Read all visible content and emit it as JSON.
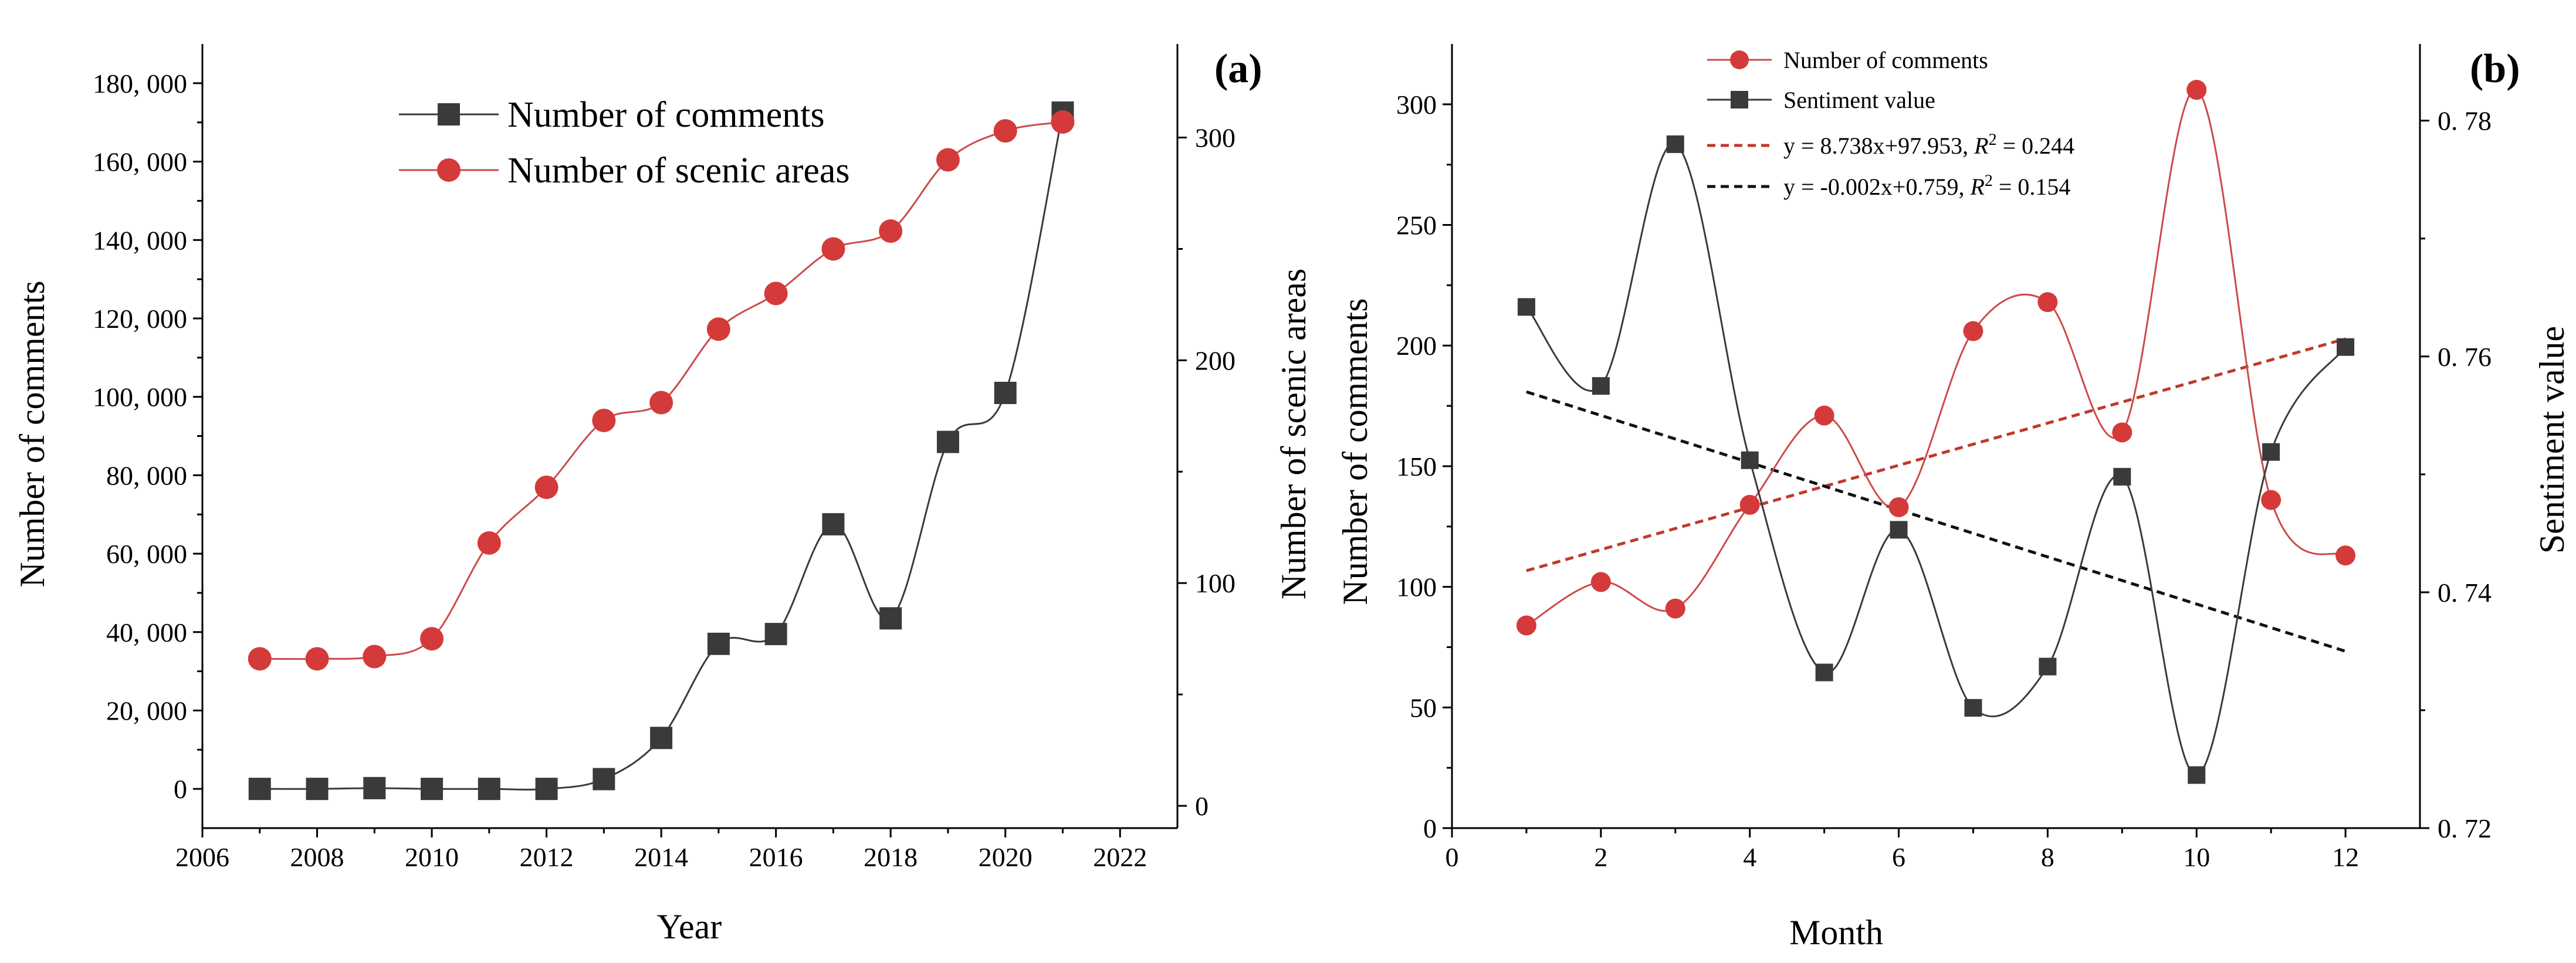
{
  "colors": {
    "black_series": "#3a3a3a",
    "red_series": "#d43a3a",
    "red_line": "#cc4a4a",
    "axis": "#000000"
  },
  "chart_data": [
    {
      "panel": "(a)",
      "type": "line",
      "xlabel": "Year",
      "ylabel": "Number of comments",
      "y2label": "Number of scenic areas",
      "xlim": [
        2006,
        2023
      ],
      "ylim": [
        -10000,
        190000
      ],
      "y2lim": [
        -10,
        342
      ],
      "x_ticks": [
        2006,
        2008,
        2010,
        2012,
        2014,
        2016,
        2018,
        2020,
        2022
      ],
      "x_tick_labels": [
        "2006",
        "2008",
        "2010",
        "2012",
        "2014",
        "2016",
        "2018",
        "2020",
        "2022"
      ],
      "y_ticks": [
        0,
        20000,
        40000,
        60000,
        80000,
        100000,
        120000,
        140000,
        160000,
        180000
      ],
      "y_tick_labels": [
        "0",
        "20, 000",
        "40, 000",
        "60, 000",
        "80, 000",
        "100, 000",
        "120, 000",
        "140, 000",
        "160, 000",
        "180, 000"
      ],
      "y2_ticks": [
        0,
        100,
        200,
        300
      ],
      "y2_tick_labels": [
        "0",
        "100",
        "200",
        "300"
      ],
      "legend": [
        "Number of comments",
        "Number of scenic areas"
      ],
      "x": [
        2007,
        2008,
        2009,
        2010,
        2011,
        2012,
        2013,
        2014,
        2015,
        2016,
        2017,
        2018,
        2019,
        2020,
        2021
      ],
      "series": [
        {
          "name": "Number of comments",
          "axis": "left",
          "marker": "square",
          "values": [
            0,
            0,
            200,
            0,
            0,
            0,
            2500,
            13000,
            37000,
            39500,
            67500,
            43500,
            88500,
            101000,
            172500
          ]
        },
        {
          "name": "Number of scenic areas",
          "axis": "right",
          "marker": "circle",
          "values": [
            66,
            66,
            67,
            75,
            118,
            143,
            173,
            181,
            214,
            230,
            250,
            258,
            290,
            303,
            307
          ]
        }
      ]
    },
    {
      "panel": "(b)",
      "type": "line",
      "xlabel": "Month",
      "ylabel": "Number of comments",
      "y2label": "Sentiment value",
      "xlim": [
        0,
        13
      ],
      "ylim": [
        0,
        325
      ],
      "y2lim": [
        0.72,
        0.7865
      ],
      "x_ticks": [
        0,
        2,
        4,
        6,
        8,
        10,
        12
      ],
      "x_tick_labels": [
        "0",
        "2",
        "4",
        "6",
        "8",
        "10",
        "12"
      ],
      "y_ticks": [
        0,
        50,
        100,
        150,
        200,
        250,
        300
      ],
      "y_tick_labels": [
        "0",
        "50",
        "100",
        "150",
        "200",
        "250",
        "300"
      ],
      "y2_ticks": [
        0.72,
        0.74,
        0.76,
        0.78
      ],
      "y2_tick_labels": [
        "0. 72",
        "0. 74",
        "0. 76",
        "0. 78"
      ],
      "legend": [
        "Number of comments",
        "Sentiment value",
        "y = 8.738x+97.953, R² = 0.244",
        "y = -0.002x+0.759, R² = 0.154"
      ],
      "legend_parts": [
        {
          "pre": "y = 8.738x+97.953, ",
          "r": "R",
          "sup": "2",
          "post": " = 0.244"
        },
        {
          "pre": "y = -0.002x+0.759, ",
          "r": "R",
          "sup": "2",
          "post": " = 0.154"
        }
      ],
      "x": [
        1,
        2,
        3,
        4,
        5,
        6,
        7,
        8,
        9,
        10,
        11,
        12
      ],
      "series": [
        {
          "name": "Number of comments",
          "axis": "left",
          "marker": "circle",
          "values": [
            84,
            102,
            91,
            134,
            171,
            133,
            206,
            218,
            164,
            306,
            136,
            113
          ]
        },
        {
          "name": "Sentiment value",
          "axis": "right",
          "marker": "square",
          "values": [
            0.7642,
            0.7575,
            0.778,
            0.7512,
            0.7332,
            0.7453,
            0.7302,
            0.7337,
            0.7498,
            0.7245,
            0.7519,
            0.7608
          ]
        }
      ],
      "trendlines": [
        {
          "name": "y = 8.738x+97.953, R² = 0.244",
          "axis": "left",
          "slope": 8.738,
          "intercept": 97.953,
          "x_range": [
            1,
            12
          ]
        },
        {
          "name": "y = -0.002x+0.759, R² = 0.154",
          "axis": "right",
          "slope": -0.002,
          "intercept": 0.759,
          "x_range": [
            1,
            12
          ]
        }
      ]
    }
  ]
}
